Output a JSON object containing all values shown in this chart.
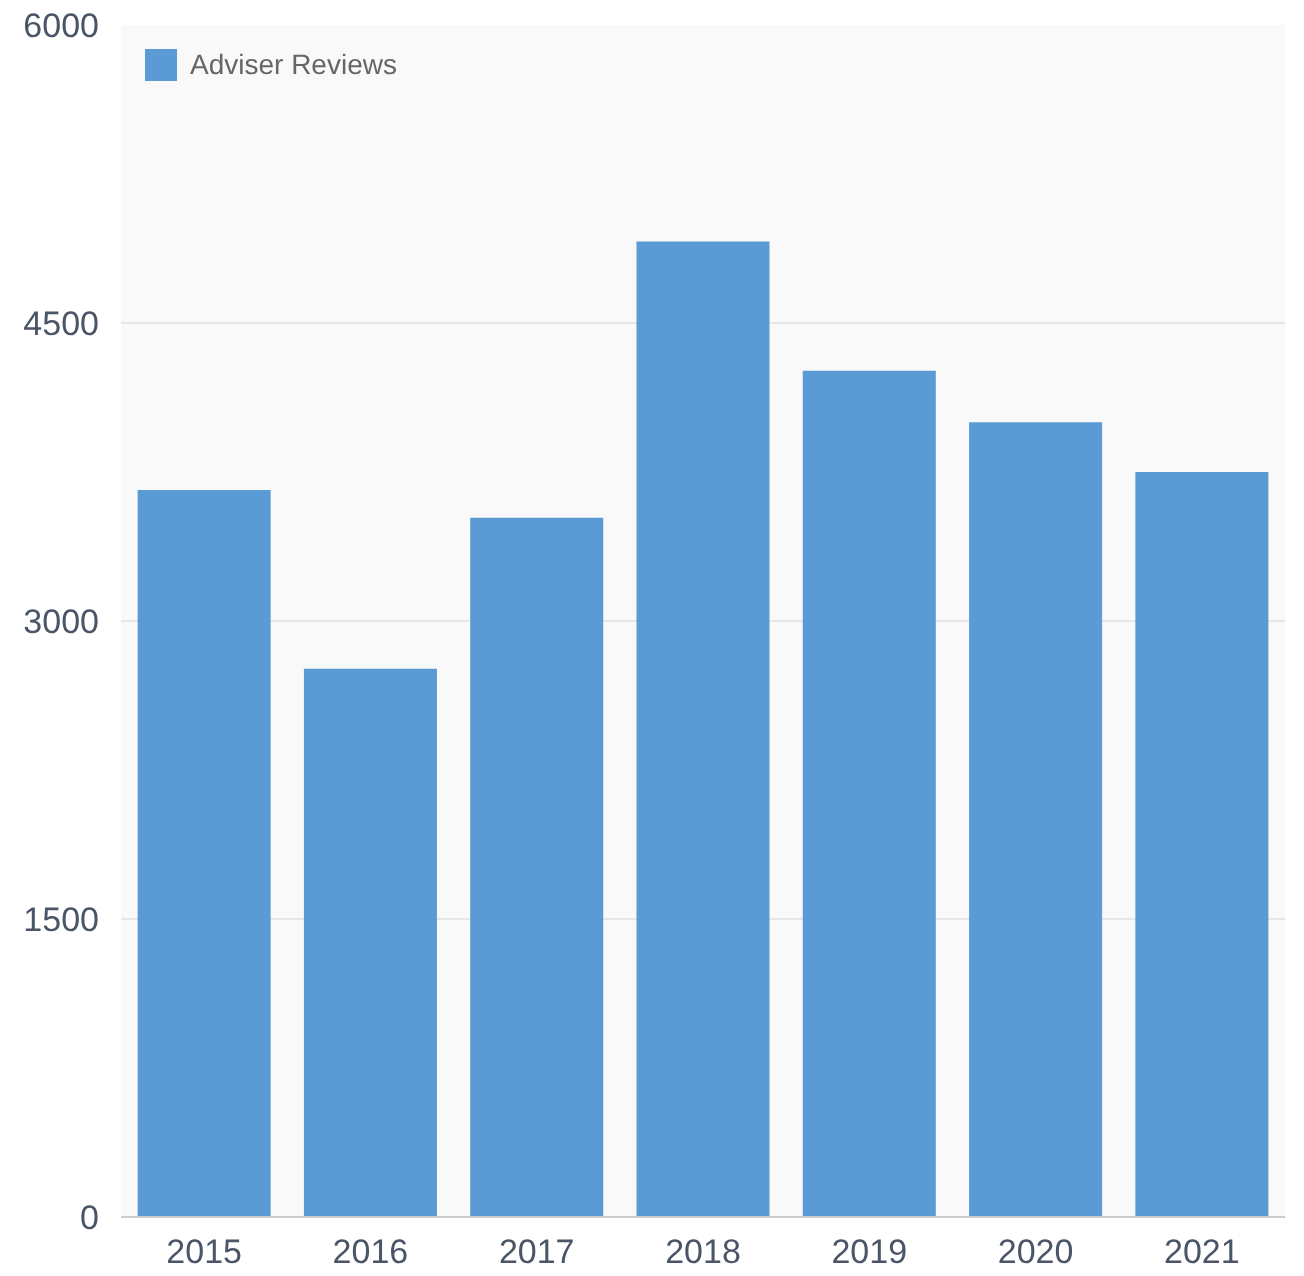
{
  "chart_data": {
    "type": "bar",
    "categories": [
      "2015",
      "2016",
      "2017",
      "2018",
      "2019",
      "2020",
      "2021"
    ],
    "series": [
      {
        "name": "Adviser Reviews",
        "color": "#5b9bd5",
        "values": [
          3660,
          2760,
          3520,
          4910,
          4260,
          4000,
          3750
        ]
      }
    ],
    "ylim": [
      0,
      6000
    ],
    "yticks": [
      0,
      1500,
      3000,
      4500,
      6000
    ],
    "grid": "y",
    "legend": "top left"
  }
}
